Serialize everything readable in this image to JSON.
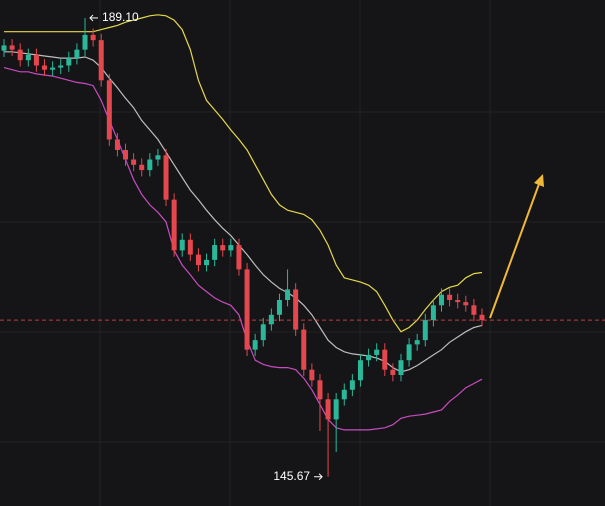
{
  "chart_data": {
    "type": "candlestick",
    "ylim": [
      142.9,
      190.8
    ],
    "up_color": "#2bb89a",
    "down_color": "#e5474f",
    "candles": {
      "open": [
        186.0,
        186.5,
        186.1,
        185.1,
        185.6,
        184.6,
        184.2,
        184.4,
        184.6,
        185.3,
        186.1,
        187.5,
        187.0,
        183.2,
        177.6,
        176.6,
        175.7,
        175.2,
        174.7,
        175.7,
        176.1,
        171.9,
        167.1,
        168.1,
        166.7,
        165.7,
        166.2,
        167.6,
        167.1,
        167.6,
        165.3,
        157.7,
        158.6,
        160.1,
        161.0,
        162.4,
        163.4,
        159.6,
        155.8,
        154.8,
        153.0,
        151.1,
        153.0,
        153.9,
        154.8,
        156.7,
        157.2,
        157.7,
        155.8,
        155.3,
        156.7,
        158.2,
        158.6,
        160.5,
        161.9,
        162.9,
        162.4,
        162.2,
        161.9,
        161.0
      ],
      "high": [
        187.1,
        187.1,
        186.7,
        186.2,
        186.2,
        185.2,
        185.0,
        185.2,
        185.9,
        186.7,
        189.1,
        188.1,
        187.6,
        183.8,
        178.2,
        177.2,
        176.3,
        175.8,
        176.3,
        176.7,
        176.7,
        172.5,
        168.7,
        168.7,
        167.3,
        166.8,
        168.2,
        168.2,
        168.2,
        168.2,
        165.9,
        159.2,
        160.7,
        161.6,
        163.0,
        165.3,
        164.0,
        160.2,
        156.4,
        155.4,
        153.6,
        153.6,
        154.5,
        155.4,
        157.3,
        157.8,
        158.3,
        158.3,
        156.4,
        157.3,
        158.8,
        159.2,
        161.1,
        162.5,
        163.5,
        163.5,
        163.0,
        162.8,
        162.5,
        161.6
      ],
      "low": [
        185.4,
        185.5,
        184.5,
        184.5,
        184.0,
        183.6,
        183.6,
        183.8,
        184.0,
        184.7,
        185.5,
        186.4,
        182.6,
        177.0,
        176.0,
        175.1,
        174.6,
        174.1,
        174.1,
        175.1,
        171.3,
        166.5,
        166.5,
        166.1,
        165.1,
        165.1,
        165.6,
        166.5,
        166.5,
        164.7,
        157.1,
        157.1,
        158.0,
        159.5,
        160.4,
        161.8,
        159.0,
        155.2,
        154.2,
        150.0,
        145.67,
        148.0,
        152.4,
        153.3,
        154.2,
        156.1,
        156.6,
        155.2,
        154.7,
        154.7,
        156.1,
        157.6,
        158.0,
        159.9,
        161.3,
        161.8,
        161.6,
        161.3,
        160.4,
        159.9
      ],
      "close": [
        186.5,
        186.1,
        185.1,
        185.6,
        184.6,
        184.2,
        184.4,
        184.6,
        185.3,
        186.1,
        187.5,
        187.0,
        183.2,
        177.6,
        176.6,
        175.7,
        175.2,
        174.7,
        175.7,
        176.1,
        171.9,
        167.1,
        168.1,
        166.7,
        165.7,
        166.2,
        167.6,
        167.1,
        167.6,
        165.3,
        157.7,
        158.6,
        160.1,
        161.0,
        162.4,
        163.4,
        159.6,
        155.8,
        154.8,
        153.0,
        151.1,
        153.0,
        153.9,
        154.8,
        156.7,
        157.2,
        157.7,
        155.8,
        155.3,
        156.7,
        158.2,
        158.6,
        160.5,
        161.9,
        162.9,
        162.4,
        162.2,
        161.9,
        161.0,
        160.5
      ]
    },
    "bands": [
      {
        "color": "#e4d84a",
        "values": [
          187.8,
          187.8,
          187.8,
          187.8,
          187.8,
          187.8,
          187.8,
          187.8,
          187.8,
          187.8,
          187.8,
          187.8,
          188.0,
          188.2,
          188.4,
          188.7,
          188.9,
          189.1,
          189.3,
          189.4,
          189.3,
          188.9,
          188.0,
          186.1,
          183.2,
          181.3,
          180.4,
          179.5,
          178.5,
          177.6,
          176.6,
          175.2,
          173.8,
          172.4,
          171.4,
          170.9,
          170.7,
          170.5,
          170.0,
          169.0,
          167.6,
          165.7,
          164.5,
          164.3,
          164.1,
          163.8,
          163.2,
          161.9,
          160.5,
          159.4,
          159.8,
          160.5,
          161.5,
          162.4,
          163.2,
          163.6,
          163.8,
          164.5,
          164.9,
          165.0
        ]
      },
      {
        "color": "#bdbdbd",
        "values": [
          185.9,
          185.9,
          185.8,
          185.7,
          185.6,
          185.5,
          185.4,
          185.3,
          185.3,
          185.3,
          185.4,
          185.1,
          184.4,
          183.4,
          182.5,
          181.5,
          180.6,
          179.4,
          178.5,
          177.6,
          176.4,
          175.2,
          174.0,
          172.8,
          171.9,
          170.9,
          170.0,
          169.2,
          168.5,
          167.6,
          166.7,
          165.7,
          164.8,
          164.1,
          163.5,
          163.1,
          162.6,
          161.9,
          161.0,
          159.8,
          158.6,
          157.9,
          157.5,
          157.3,
          157.2,
          157.1,
          156.9,
          156.6,
          156.0,
          155.6,
          155.8,
          156.2,
          156.7,
          157.2,
          157.7,
          158.4,
          158.9,
          159.4,
          159.8,
          160.0
        ]
      },
      {
        "color": "#c94bc0",
        "values": [
          184.4,
          184.2,
          184.0,
          184.0,
          183.8,
          183.7,
          183.6,
          183.4,
          183.2,
          183.0,
          182.9,
          182.7,
          181.3,
          179.4,
          177.6,
          175.7,
          173.8,
          172.4,
          171.4,
          170.7,
          169.8,
          167.1,
          165.7,
          164.8,
          163.8,
          163.2,
          162.6,
          162.2,
          161.9,
          161.0,
          158.6,
          156.7,
          156.3,
          156.1,
          156.0,
          156.0,
          155.8,
          155.0,
          153.9,
          152.5,
          151.1,
          150.3,
          150.1,
          150.1,
          150.1,
          150.1,
          150.2,
          150.3,
          150.6,
          151.2,
          151.4,
          151.5,
          151.6,
          151.8,
          152.0,
          152.8,
          153.4,
          154.1,
          154.5,
          154.9
        ]
      }
    ],
    "high_label": "189.10",
    "low_label": "145.67"
  }
}
